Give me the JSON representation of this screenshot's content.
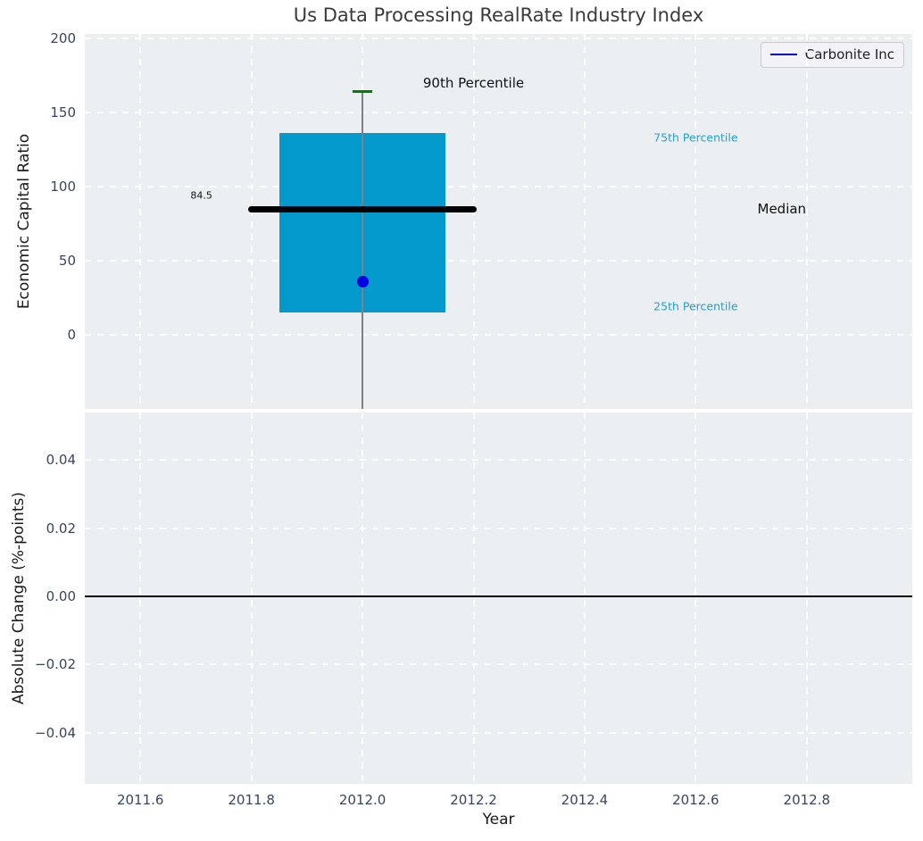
{
  "colors": {
    "figure_bg": "#ffffff",
    "axes_bg": "#eceff1",
    "grid": "#ffffff",
    "title": "#3a3a3a",
    "axis_label": "#1a1a1a",
    "tick_label": "#37465f",
    "box_fill": "#0499cd",
    "median_line": "#000000",
    "whisker": "#808080",
    "cap": "#008000",
    "point": "#0000e0",
    "percentile_label": "#21a2d4",
    "annotation": "#111111",
    "zero_line": "#000000",
    "legend_line": "#0000cc",
    "legend_bg": "#f2f2f7",
    "legend_border": "#c9c9d1"
  },
  "legend": {
    "label": "Carbonite Inc"
  },
  "chart_data": [
    {
      "type": "box",
      "title": "Us Data Processing RealRate Industry Index",
      "ylabel": "Economic Capital Ratio",
      "grid": true,
      "legend_position": "upper right",
      "xlim": [
        2011.5,
        2012.99
      ],
      "ylim": [
        -50,
        203
      ],
      "xtick_values": [
        2011.6,
        2011.8,
        2012.0,
        2012.2,
        2012.4,
        2012.6,
        2012.8
      ],
      "xtick_labels": null,
      "yticks": [
        {
          "v": 200,
          "label": "200"
        },
        {
          "v": 150,
          "label": "150"
        },
        {
          "v": 100,
          "label": "100"
        },
        {
          "v": 50,
          "label": "50"
        },
        {
          "v": 0,
          "label": "0"
        }
      ],
      "box": {
        "x": 2012.0,
        "q25": 15,
        "median": 84.5,
        "q75": 136,
        "p90": 164,
        "box_half_width": 0.15,
        "median_half_width": 0.206,
        "cap_half_width": 0.017,
        "whisker_clipped_below": true
      },
      "point": {
        "name": "Carbonite Inc",
        "x": 2012.0,
        "y": 36
      },
      "annotations": [
        {
          "text": "90th Percentile",
          "x": 2012.2,
          "y": 170,
          "style": "dark-large"
        },
        {
          "text": "75th Percentile",
          "x": 2012.6,
          "y": 133,
          "style": "cyan-small"
        },
        {
          "text": "Median",
          "x": 2012.755,
          "y": 85,
          "style": "dark-large"
        },
        {
          "text": "25th Percentile",
          "x": 2012.6,
          "y": 19,
          "style": "cyan-small"
        },
        {
          "text": "84.5",
          "x": 2011.71,
          "y": 94,
          "style": "dark-tiny"
        }
      ]
    },
    {
      "type": "line",
      "ylabel": "Absolute Change (%-points)",
      "xlabel": "Year",
      "grid": true,
      "series": [],
      "zero_line": 0,
      "xlim": [
        2011.5,
        2012.99
      ],
      "ylim": [
        -0.055,
        0.054
      ],
      "xtick_values": [
        2011.6,
        2011.8,
        2012.0,
        2012.2,
        2012.4,
        2012.6,
        2012.8
      ],
      "xtick_labels": [
        "2011.6",
        "2011.8",
        "2012.0",
        "2012.2",
        "2012.4",
        "2012.6",
        "2012.8"
      ],
      "yticks": [
        {
          "v": 0.04,
          "label": "0.04"
        },
        {
          "v": 0.02,
          "label": "0.02"
        },
        {
          "v": 0.0,
          "label": "0.00"
        },
        {
          "v": -0.02,
          "label": "−0.02"
        },
        {
          "v": -0.04,
          "label": "−0.04"
        }
      ]
    }
  ]
}
